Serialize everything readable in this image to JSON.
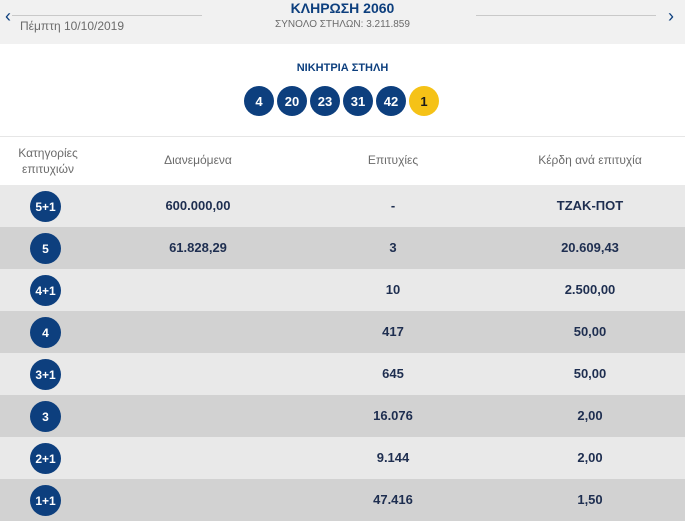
{
  "header": {
    "prev_arrow": "‹",
    "next_arrow": "›",
    "date": "Πέμπτη 10/10/2019",
    "draw_title": "ΚΛΗΡΩΣΗ 2060",
    "total_columns": "ΣΥΝΟΛΟ ΣΤΗΛΩΝ: 3.211.859"
  },
  "winning": {
    "label": "ΝΙΚΗΤΡΙΑ ΣΤΗΛΗ",
    "numbers": [
      "4",
      "20",
      "23",
      "31",
      "42"
    ],
    "joker": "1",
    "colors": {
      "number_ball": "#0d3f7e",
      "joker_ball": "#f5c217"
    }
  },
  "table": {
    "headers": {
      "category": "Κατηγορίες επιτυχιών",
      "distributed": "Διανεμόμενα",
      "winners": "Επιτυχίες",
      "prize_per_winner": "Κέρδη ανά επιτυχία"
    },
    "rows": [
      {
        "category": "5+1",
        "distributed": "600.000,00",
        "winners": "-",
        "prize": "ΤΖΑΚ-ΠΟΤ"
      },
      {
        "category": "5",
        "distributed": "61.828,29",
        "winners": "3",
        "prize": "20.609,43"
      },
      {
        "category": "4+1",
        "distributed": "",
        "winners": "10",
        "prize": "2.500,00"
      },
      {
        "category": "4",
        "distributed": "",
        "winners": "417",
        "prize": "50,00"
      },
      {
        "category": "3+1",
        "distributed": "",
        "winners": "645",
        "prize": "50,00"
      },
      {
        "category": "3",
        "distributed": "",
        "winners": "16.076",
        "prize": "2,00"
      },
      {
        "category": "2+1",
        "distributed": "",
        "winners": "9.144",
        "prize": "2,00"
      },
      {
        "category": "1+1",
        "distributed": "",
        "winners": "47.416",
        "prize": "1,50"
      }
    ]
  }
}
